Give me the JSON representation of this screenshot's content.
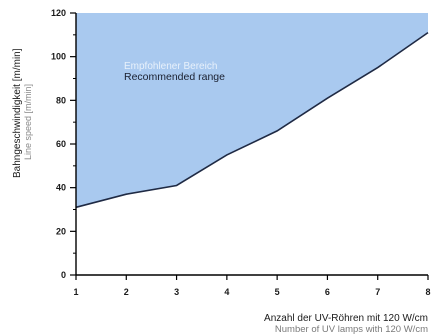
{
  "chart_data": {
    "type": "area",
    "x": [
      1,
      2,
      3,
      4,
      5,
      6,
      7,
      8
    ],
    "series": [
      {
        "values": [
          31,
          37,
          41,
          55,
          66,
          81,
          95,
          111
        ]
      }
    ],
    "xlim": [
      1,
      8
    ],
    "ylim": [
      0,
      120
    ],
    "xticks": [
      "1",
      "2",
      "3",
      "4",
      "5",
      "6",
      "7",
      "8"
    ],
    "yticks": [
      "0",
      "20",
      "40",
      "60",
      "80",
      "100",
      "120"
    ],
    "xlabel": "Anzahl der UV-Röhren mit 120 W/cm",
    "xlabel_secondary": "Number of UV lamps with 120 W/cm",
    "ylabel": "Bahngeschwindigkeit [m/min]",
    "ylabel_secondary": "Line speed [m/min]",
    "region_label": "Empfohlener Bereich",
    "region_label_secondary": "Recommended range",
    "fill_region": "above-line",
    "grid": false,
    "colors": {
      "fill": "#a9c9ef",
      "line": "#1f2a44",
      "axis": "#000000"
    }
  }
}
